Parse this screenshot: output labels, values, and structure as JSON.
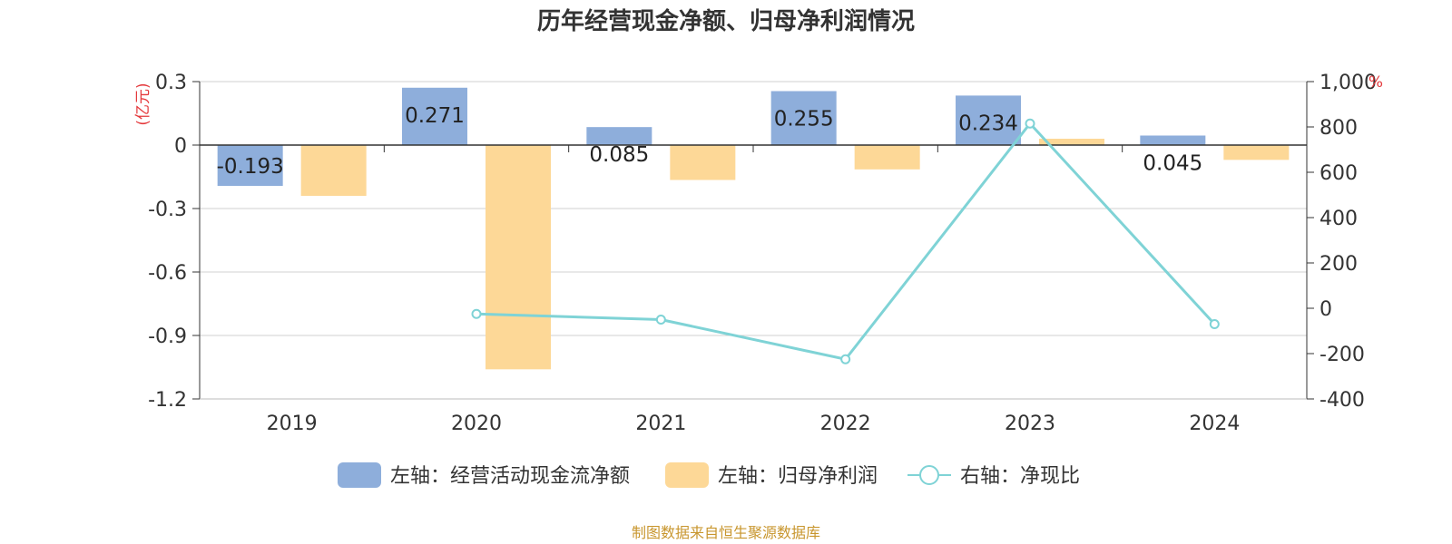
{
  "chart_data": {
    "type": "bar",
    "title": "历年经营现金净额、归母净利润情况",
    "categories": [
      "2019",
      "2020",
      "2021",
      "2022",
      "2023",
      "2024"
    ],
    "left_axis": {
      "unit": "(亿元)",
      "ylim": [
        -1.2,
        0.3
      ],
      "ticks": [
        "0.3",
        "0",
        "-0.3",
        "-0.6",
        "-0.9",
        "-1.2"
      ],
      "tick_values": [
        0.3,
        0,
        -0.3,
        -0.6,
        -0.9,
        -1.2
      ]
    },
    "right_axis": {
      "unit": "%",
      "ylim": [
        -400,
        1000
      ],
      "ticks": [
        "1,000",
        "800",
        "600",
        "400",
        "200",
        "0",
        "-200",
        "-400"
      ],
      "tick_values": [
        1000,
        800,
        600,
        400,
        200,
        0,
        -200,
        -400
      ]
    },
    "series": [
      {
        "name": "左轴：经营活动现金流净额",
        "type": "bar",
        "axis": "left",
        "color": "#8eaedb",
        "values": [
          -0.193,
          0.271,
          0.085,
          0.255,
          0.234,
          0.045
        ],
        "labels": [
          "-0.193",
          "0.271",
          "0.085",
          "0.255",
          "0.234",
          "0.045"
        ]
      },
      {
        "name": "左轴：归母净利润",
        "type": "bar",
        "axis": "left",
        "color": "#fdd897",
        "values": [
          -0.24,
          -1.06,
          -0.165,
          -0.115,
          0.03,
          -0.07
        ]
      },
      {
        "name": "右轴：净现比",
        "type": "line",
        "axis": "right",
        "color": "#7fd3d6",
        "values": [
          null,
          -25,
          -50,
          -225,
          815,
          -70
        ]
      }
    ],
    "grid": true,
    "legend_position": "bottom"
  },
  "source": "制图数据来自恒生聚源数据库"
}
